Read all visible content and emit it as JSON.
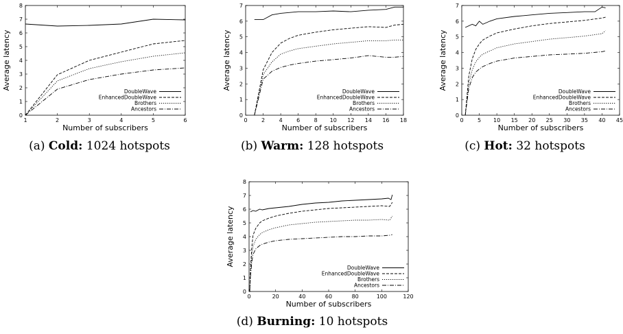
{
  "captions": [
    {
      "prefix": "(a)",
      "bold": "Cold:",
      "rest": "1024 hotspots"
    },
    {
      "prefix": "(b)",
      "bold": "Warm:",
      "rest": "128 hotspots"
    },
    {
      "prefix": "(c)",
      "bold": "Hot:",
      "rest": "32 hotspots"
    },
    {
      "prefix": "(d)",
      "bold": "Burning:",
      "rest": "10 hotspots"
    }
  ],
  "chart_data": [
    {
      "type": "line",
      "xlabel": "Number of subscribers",
      "ylabel": "Average latency",
      "xlim": [
        1,
        6
      ],
      "ylim": [
        0,
        8
      ],
      "xticks": [
        1,
        2,
        3,
        4,
        5,
        6
      ],
      "yticks": [
        0,
        1,
        2,
        3,
        4,
        5,
        6,
        7,
        8
      ],
      "legend_position": "bottom-right",
      "series": [
        {
          "name": "DoubleWave",
          "x": [
            1,
            2,
            3,
            4,
            5,
            6
          ],
          "y": [
            6.65,
            6.5,
            6.55,
            6.65,
            7.0,
            6.95
          ]
        },
        {
          "name": "EnhancedDoubleWave",
          "x": [
            1,
            2,
            3,
            4,
            5,
            6
          ],
          "y": [
            0,
            2.95,
            4.0,
            4.6,
            5.2,
            5.45
          ]
        },
        {
          "name": "Brothers",
          "x": [
            1,
            2,
            3,
            4,
            5,
            6
          ],
          "y": [
            0,
            2.5,
            3.4,
            3.9,
            4.3,
            4.55
          ]
        },
        {
          "name": "Ancestors",
          "x": [
            1,
            2,
            3,
            4,
            5,
            6
          ],
          "y": [
            0,
            1.9,
            2.6,
            3.0,
            3.3,
            3.45
          ]
        }
      ]
    },
    {
      "type": "line",
      "xlabel": "Number of subscribers",
      "ylabel": "Average latency",
      "xlim": [
        0,
        18
      ],
      "ylim": [
        0,
        7
      ],
      "xticks": [
        0,
        2,
        4,
        6,
        8,
        10,
        12,
        14,
        16,
        18
      ],
      "yticks": [
        0,
        1,
        2,
        3,
        4,
        5,
        6,
        7
      ],
      "legend_position": "bottom-right",
      "series": [
        {
          "name": "DoubleWave",
          "x": [
            1,
            2,
            3,
            4,
            6,
            8,
            10,
            12,
            14,
            16,
            17,
            18
          ],
          "y": [
            6.1,
            6.1,
            6.4,
            6.5,
            6.6,
            6.6,
            6.65,
            6.6,
            6.7,
            6.75,
            6.9,
            6.9
          ]
        },
        {
          "name": "EnhancedDoubleWave",
          "x": [
            1,
            2,
            3,
            4,
            5,
            6,
            8,
            10,
            12,
            14,
            16,
            17,
            18
          ],
          "y": [
            0,
            2.9,
            4.0,
            4.6,
            4.9,
            5.1,
            5.3,
            5.45,
            5.55,
            5.65,
            5.6,
            5.75,
            5.8
          ]
        },
        {
          "name": "Brothers",
          "x": [
            1,
            2,
            3,
            4,
            5,
            6,
            8,
            10,
            12,
            14,
            16,
            17,
            18
          ],
          "y": [
            0,
            2.6,
            3.4,
            3.9,
            4.1,
            4.25,
            4.4,
            4.55,
            4.65,
            4.75,
            4.75,
            4.8,
            4.8
          ]
        },
        {
          "name": "Ancestors",
          "x": [
            1,
            2,
            3,
            4,
            5,
            6,
            8,
            10,
            12,
            14,
            16,
            17,
            18
          ],
          "y": [
            0,
            2.3,
            2.8,
            3.05,
            3.2,
            3.3,
            3.45,
            3.55,
            3.65,
            3.8,
            3.7,
            3.7,
            3.75
          ]
        }
      ]
    },
    {
      "type": "line",
      "xlabel": "Number of subscribers",
      "ylabel": "Average latency",
      "xlim": [
        0,
        45
      ],
      "ylim": [
        0,
        7
      ],
      "xticks": [
        0,
        5,
        10,
        15,
        20,
        25,
        30,
        35,
        40,
        45
      ],
      "yticks": [
        0,
        1,
        2,
        3,
        4,
        5,
        6,
        7
      ],
      "legend_position": "bottom-right",
      "series": [
        {
          "name": "DoubleWave",
          "x": [
            1,
            3,
            4,
            5,
            6,
            8,
            10,
            15,
            20,
            25,
            30,
            35,
            38,
            40,
            41
          ],
          "y": [
            5.6,
            5.8,
            5.7,
            6.0,
            5.8,
            6.0,
            6.15,
            6.3,
            6.4,
            6.5,
            6.55,
            6.6,
            6.6,
            6.9,
            6.85
          ]
        },
        {
          "name": "EnhancedDoubleWave",
          "x": [
            1,
            2,
            3,
            4,
            5,
            6,
            8,
            10,
            15,
            20,
            25,
            30,
            35,
            40,
            41
          ],
          "y": [
            0,
            2.5,
            3.6,
            4.2,
            4.55,
            4.8,
            5.05,
            5.25,
            5.5,
            5.7,
            5.85,
            5.95,
            6.05,
            6.2,
            6.25
          ]
        },
        {
          "name": "Brothers",
          "x": [
            1,
            2,
            3,
            4,
            5,
            6,
            8,
            10,
            15,
            20,
            25,
            30,
            35,
            40,
            41
          ],
          "y": [
            0,
            2.0,
            2.9,
            3.4,
            3.7,
            3.9,
            4.1,
            4.3,
            4.55,
            4.7,
            4.85,
            4.95,
            5.05,
            5.2,
            5.4
          ]
        },
        {
          "name": "Ancestors",
          "x": [
            1,
            2,
            3,
            4,
            5,
            6,
            8,
            10,
            15,
            20,
            25,
            30,
            35,
            40,
            41
          ],
          "y": [
            0,
            1.7,
            2.4,
            2.75,
            2.95,
            3.1,
            3.3,
            3.45,
            3.65,
            3.75,
            3.85,
            3.9,
            3.95,
            4.05,
            4.1
          ]
        }
      ]
    },
    {
      "type": "line",
      "xlabel": "Number of subscribers",
      "ylabel": "Average latency",
      "xlim": [
        0,
        120
      ],
      "ylim": [
        0,
        8
      ],
      "xticks": [
        0,
        20,
        40,
        60,
        80,
        100,
        120
      ],
      "yticks": [
        0,
        1,
        2,
        3,
        4,
        5,
        6,
        7,
        8
      ],
      "legend_position": "bottom-right",
      "series": [
        {
          "name": "DoubleWave",
          "x": [
            1,
            3,
            5,
            8,
            10,
            15,
            20,
            30,
            40,
            50,
            60,
            70,
            80,
            90,
            100,
            105,
            107,
            108
          ],
          "y": [
            5.8,
            5.9,
            5.85,
            6.0,
            5.95,
            6.05,
            6.1,
            6.2,
            6.35,
            6.45,
            6.5,
            6.6,
            6.65,
            6.7,
            6.75,
            6.8,
            6.7,
            7.05
          ]
        },
        {
          "name": "EnhancedDoubleWave",
          "x": [
            0.5,
            1,
            2,
            3,
            5,
            8,
            10,
            15,
            20,
            30,
            40,
            50,
            60,
            70,
            80,
            90,
            100,
            106,
            108
          ],
          "y": [
            0,
            1.5,
            3.2,
            4.1,
            4.6,
            5.0,
            5.15,
            5.35,
            5.5,
            5.7,
            5.85,
            5.95,
            6.05,
            6.1,
            6.15,
            6.2,
            6.25,
            6.2,
            6.5
          ]
        },
        {
          "name": "Brothers",
          "x": [
            0.5,
            1,
            2,
            3,
            5,
            8,
            10,
            15,
            20,
            30,
            40,
            50,
            60,
            70,
            80,
            90,
            100,
            106,
            108
          ],
          "y": [
            0,
            1.2,
            2.6,
            3.3,
            3.8,
            4.15,
            4.3,
            4.5,
            4.65,
            4.85,
            4.95,
            5.05,
            5.1,
            5.15,
            5.2,
            5.2,
            5.25,
            5.2,
            5.5
          ]
        },
        {
          "name": "Ancestors",
          "x": [
            0.5,
            1,
            2,
            3,
            5,
            8,
            10,
            15,
            20,
            30,
            40,
            50,
            60,
            70,
            80,
            90,
            100,
            106,
            108
          ],
          "y": [
            0,
            1.0,
            2.1,
            2.7,
            3.1,
            3.35,
            3.45,
            3.6,
            3.7,
            3.8,
            3.85,
            3.9,
            3.95,
            4.0,
            4.0,
            4.05,
            4.05,
            4.1,
            4.15
          ]
        }
      ]
    }
  ],
  "series_styles": [
    {
      "color": "#000000",
      "dash": ""
    },
    {
      "color": "#000000",
      "dash": "4,2"
    },
    {
      "color": "#000000",
      "dash": "1.2,1.8"
    },
    {
      "color": "#000000",
      "dash": "6,2,1,2"
    }
  ]
}
